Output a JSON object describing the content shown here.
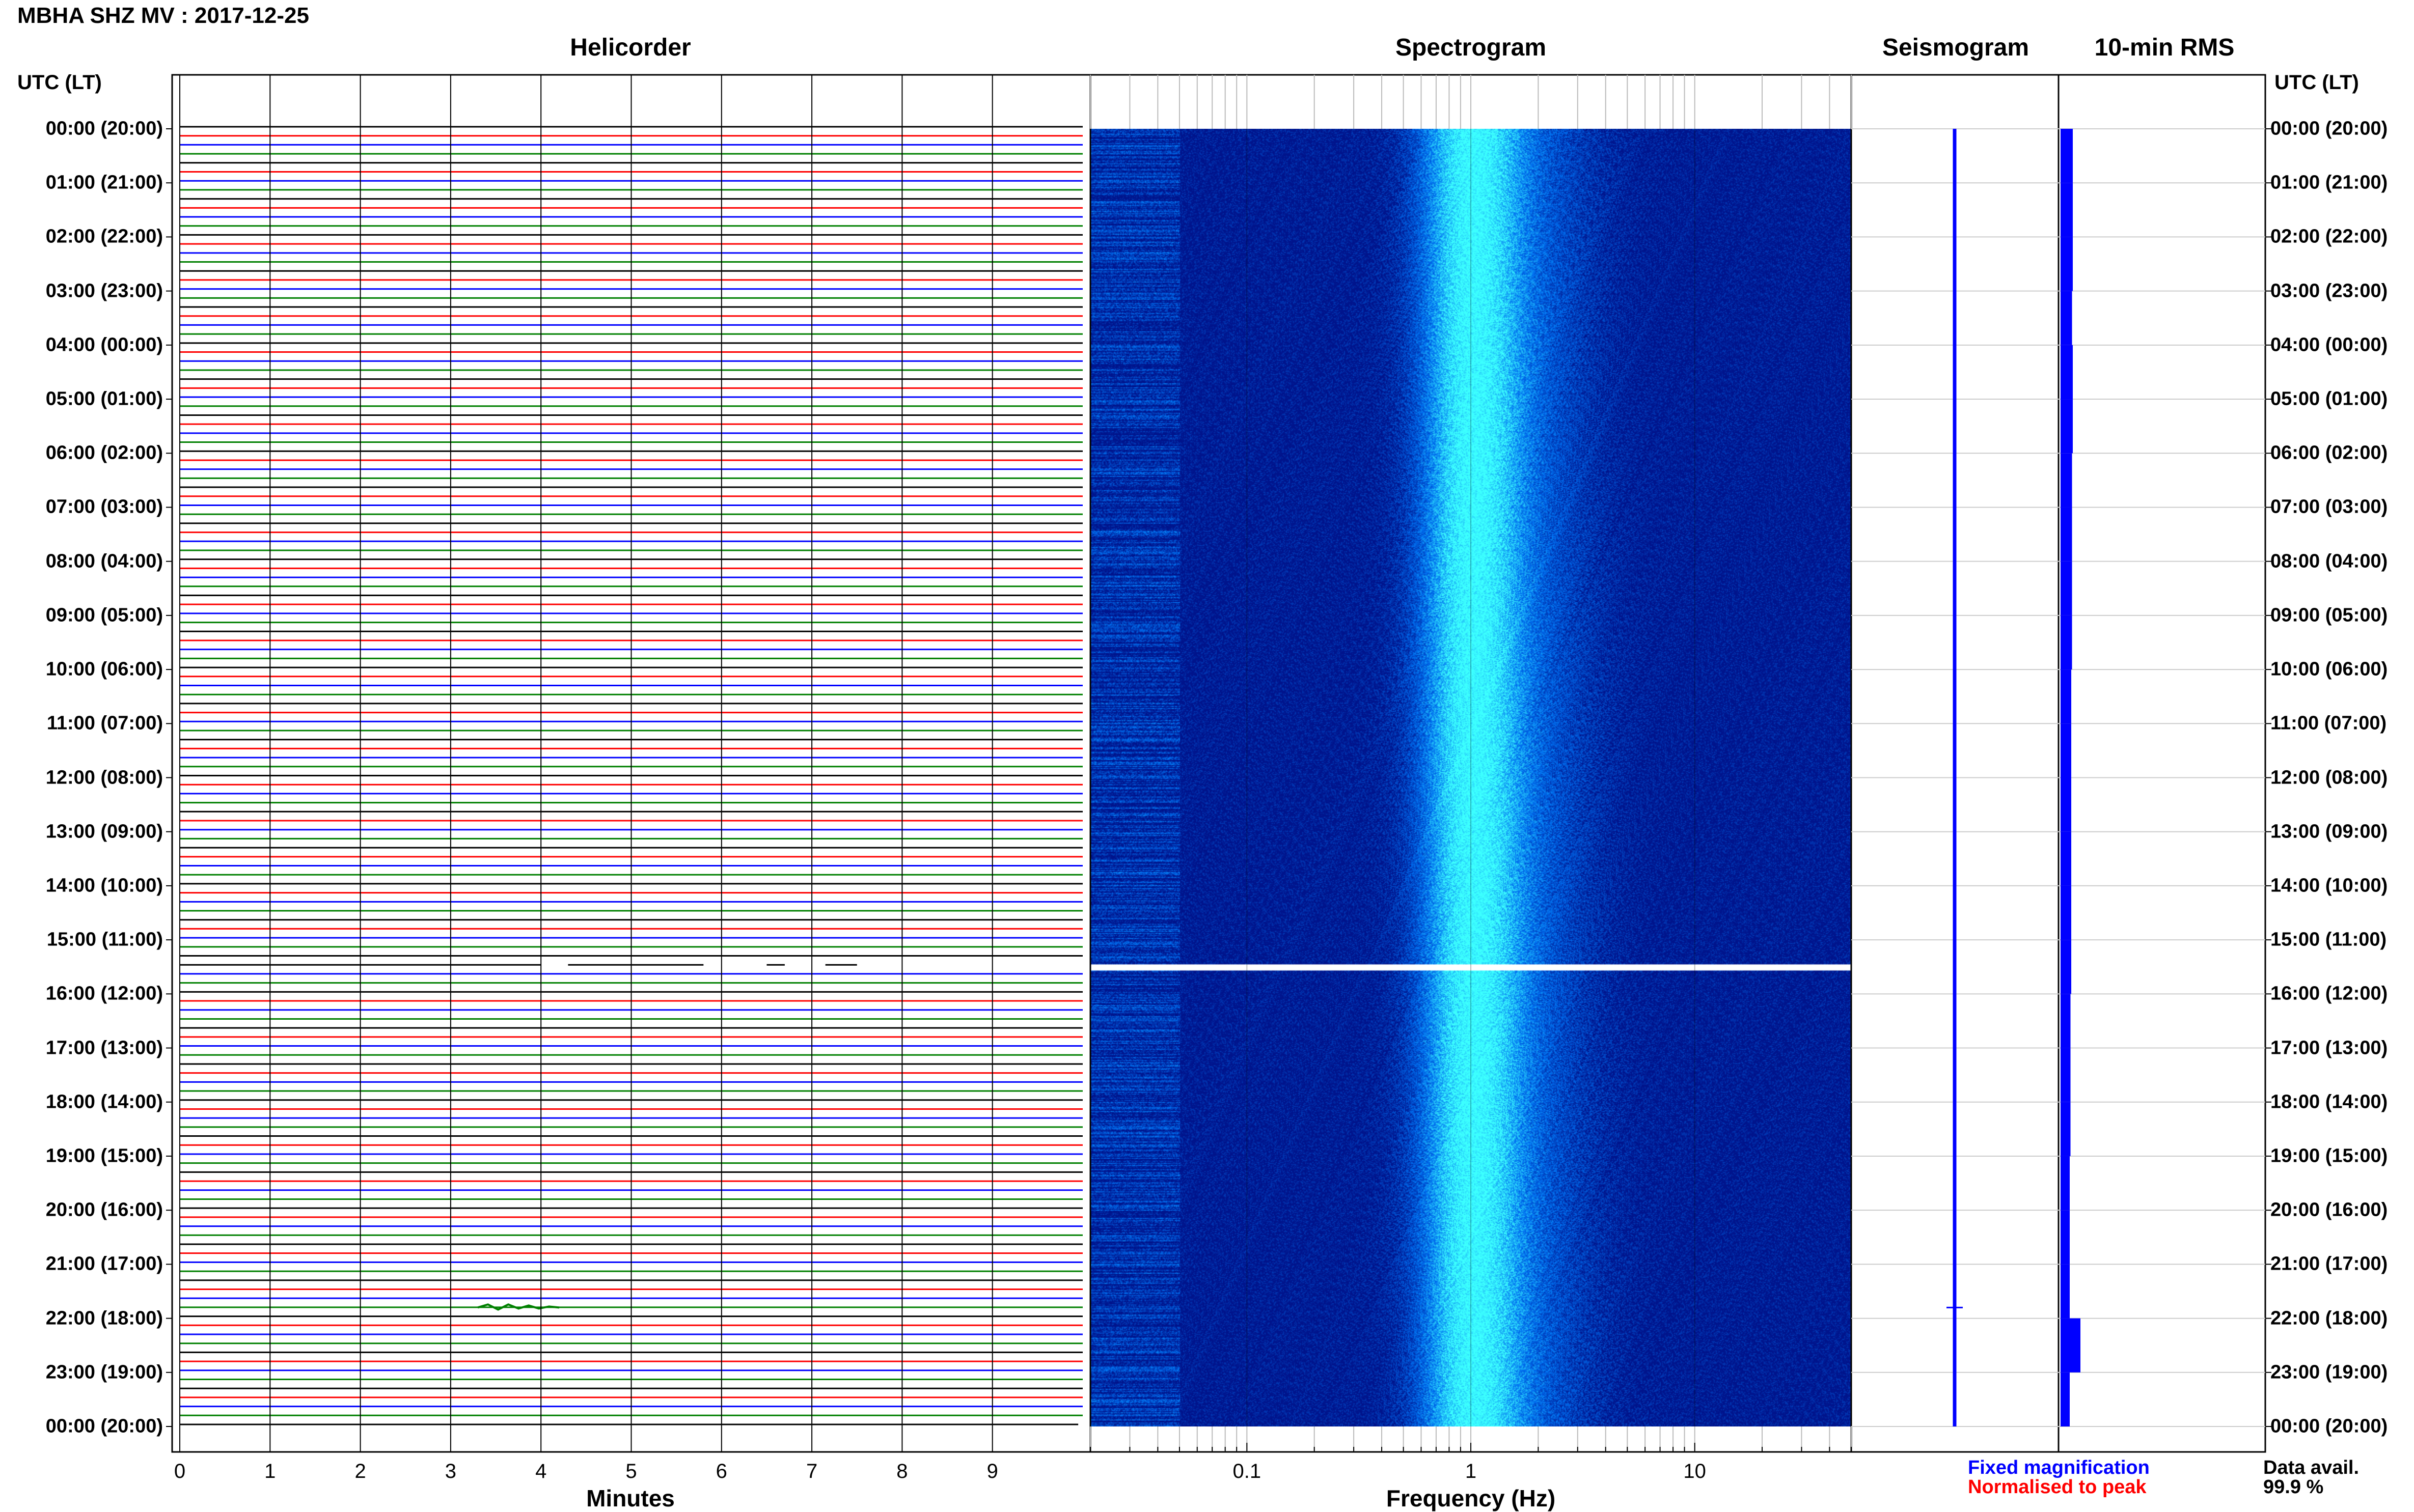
{
  "station_title": "MBHA SHZ MV : 2017-12-25",
  "panels": {
    "helicorder": "Helicorder",
    "spectrogram": "Spectrogram",
    "seismogram": "Seismogram",
    "rms": "10-min RMS"
  },
  "utc_header_left": "UTC (LT)",
  "utc_header_right": "UTC (LT)",
  "time_labels": [
    "00:00 (20:00)",
    "01:00 (21:00)",
    "02:00 (22:00)",
    "03:00 (23:00)",
    "04:00 (00:00)",
    "05:00 (01:00)",
    "06:00 (02:00)",
    "07:00 (03:00)",
    "08:00 (04:00)",
    "09:00 (05:00)",
    "10:00 (06:00)",
    "11:00 (07:00)",
    "12:00 (08:00)",
    "13:00 (09:00)",
    "14:00 (10:00)",
    "15:00 (11:00)",
    "16:00 (12:00)",
    "17:00 (13:00)",
    "18:00 (14:00)",
    "19:00 (15:00)",
    "20:00 (16:00)",
    "21:00 (17:00)",
    "22:00 (18:00)",
    "23:00 (19:00)",
    "00:00 (20:00)"
  ],
  "minutes_ticks": [
    "0",
    "1",
    "2",
    "3",
    "4",
    "5",
    "6",
    "7",
    "8",
    "9"
  ],
  "freq_ticks": [
    "0.1",
    "1",
    "10"
  ],
  "x_title_helicorder": "Minutes",
  "x_title_spectrogram": "Frequency (Hz)",
  "legend": {
    "fixed": "Fixed magnification",
    "normalised": "Normalised to peak",
    "fixed_color": "#0000ff",
    "normalised_color": "#ff0000"
  },
  "availability": {
    "label": "Data avail.",
    "value": "99.9 %"
  },
  "chart_data": {
    "type": "heatmap",
    "title": "MBHA SHZ MV : 2017-12-25",
    "helicorder": {
      "xlabel": "Minutes",
      "xlim": [
        0,
        10
      ],
      "rows_per_hour": 6,
      "trace_colors": [
        "#000000",
        "#ff0000",
        "#0000ff",
        "#008000"
      ],
      "gap_hour": 15.5,
      "event_hour": 21.8,
      "event_minute": 3.7
    },
    "spectrogram": {
      "xlabel": "Frequency (Hz)",
      "x_scale": "log",
      "xlim": [
        0.02,
        50
      ],
      "peak_band_hz": [
        0.7,
        1.3
      ],
      "gap_hour": 15.5
    },
    "rms_10min": {
      "values_relative": [
        0.8,
        0.8,
        0.8,
        0.75,
        0.8,
        0.8,
        0.75,
        0.75,
        0.75,
        0.75,
        0.7,
        0.7,
        0.7,
        0.7,
        0.7,
        0.7,
        0.65,
        0.65,
        0.65,
        0.6,
        0.6,
        0.6,
        1.3,
        0.6
      ]
    },
    "ylabel": "UTC (LT)",
    "ylim_hours": [
      0,
      24
    ]
  }
}
